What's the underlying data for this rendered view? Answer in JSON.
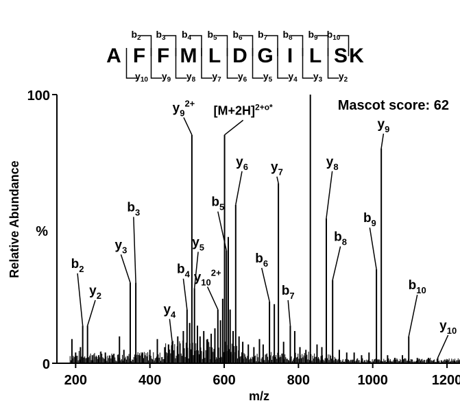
{
  "chart_data": {
    "type": "spectrum",
    "title": "",
    "xlabel": "m/z",
    "ylabel": "Relative Abundance",
    "y_axis_marker": "%",
    "xlim": [
      160,
      1240
    ],
    "ylim": [
      0,
      100
    ],
    "x_ticks": [
      200,
      400,
      600,
      800,
      1000,
      1200
    ],
    "y_ticks": [
      {
        "value": 0,
        "label": "0"
      },
      {
        "value": 100,
        "label": "100"
      }
    ],
    "grid": false,
    "annotation": "Mascot score: 62",
    "sequence": [
      "A",
      "F",
      "F",
      "M",
      "L",
      "D",
      "G",
      "I",
      "L",
      "S",
      "K"
    ],
    "b_ion_labels": [
      "b2",
      "b3",
      "b4",
      "b5",
      "b6",
      "b7",
      "b8",
      "b9",
      "b10"
    ],
    "y_ion_labels": [
      "y10",
      "y9",
      "y8",
      "y7",
      "y6",
      "y5",
      "y4",
      "y3",
      "y2"
    ],
    "peaks": [
      {
        "x": 190,
        "y": 9
      },
      {
        "x": 200,
        "y": 4
      },
      {
        "x": 213,
        "y": 6
      },
      {
        "x": 219,
        "y": 14
      },
      {
        "x": 232,
        "y": 14
      },
      {
        "x": 245,
        "y": 3
      },
      {
        "x": 262,
        "y": 3
      },
      {
        "x": 280,
        "y": 4
      },
      {
        "x": 300,
        "y": 3
      },
      {
        "x": 318,
        "y": 10
      },
      {
        "x": 330,
        "y": 5
      },
      {
        "x": 347,
        "y": 30
      },
      {
        "x": 362,
        "y": 30
      },
      {
        "x": 380,
        "y": 4
      },
      {
        "x": 400,
        "y": 5
      },
      {
        "x": 420,
        "y": 9
      },
      {
        "x": 440,
        "y": 6
      },
      {
        "x": 450,
        "y": 7
      },
      {
        "x": 460,
        "y": 8
      },
      {
        "x": 475,
        "y": 10
      },
      {
        "x": 490,
        "y": 12
      },
      {
        "x": 500,
        "y": 20
      },
      {
        "x": 507,
        "y": 15
      },
      {
        "x": 513,
        "y": 85
      },
      {
        "x": 520,
        "y": 28
      },
      {
        "x": 528,
        "y": 14
      },
      {
        "x": 535,
        "y": 10
      },
      {
        "x": 545,
        "y": 12
      },
      {
        "x": 555,
        "y": 9
      },
      {
        "x": 565,
        "y": 11
      },
      {
        "x": 575,
        "y": 13
      },
      {
        "x": 583,
        "y": 20
      },
      {
        "x": 590,
        "y": 16
      },
      {
        "x": 596,
        "y": 24
      },
      {
        "x": 601,
        "y": 85
      },
      {
        "x": 606,
        "y": 42
      },
      {
        "x": 611,
        "y": 47
      },
      {
        "x": 616,
        "y": 20
      },
      {
        "x": 624,
        "y": 12
      },
      {
        "x": 631,
        "y": 59
      },
      {
        "x": 640,
        "y": 10
      },
      {
        "x": 650,
        "y": 8
      },
      {
        "x": 665,
        "y": 7
      },
      {
        "x": 680,
        "y": 6
      },
      {
        "x": 695,
        "y": 9
      },
      {
        "x": 705,
        "y": 7
      },
      {
        "x": 722,
        "y": 23
      },
      {
        "x": 735,
        "y": 22
      },
      {
        "x": 746,
        "y": 67
      },
      {
        "x": 760,
        "y": 8
      },
      {
        "x": 778,
        "y": 14
      },
      {
        "x": 790,
        "y": 12
      },
      {
        "x": 804,
        "y": 6
      },
      {
        "x": 820,
        "y": 5
      },
      {
        "x": 832,
        "y": 100
      },
      {
        "x": 850,
        "y": 7
      },
      {
        "x": 863,
        "y": 6
      },
      {
        "x": 875,
        "y": 54
      },
      {
        "x": 892,
        "y": 31
      },
      {
        "x": 910,
        "y": 5
      },
      {
        "x": 930,
        "y": 4
      },
      {
        "x": 950,
        "y": 4
      },
      {
        "x": 970,
        "y": 3
      },
      {
        "x": 990,
        "y": 4
      },
      {
        "x": 1010,
        "y": 35
      },
      {
        "x": 1023,
        "y": 80
      },
      {
        "x": 1040,
        "y": 3
      },
      {
        "x": 1060,
        "y": 2
      },
      {
        "x": 1080,
        "y": 3
      },
      {
        "x": 1097,
        "y": 10
      },
      {
        "x": 1120,
        "y": 2
      },
      {
        "x": 1150,
        "y": 2
      },
      {
        "x": 1175,
        "y": 2
      },
      {
        "x": 1200,
        "y": 1
      },
      {
        "x": 1220,
        "y": 1
      }
    ],
    "peak_labels": [
      {
        "ion": "b",
        "sub": "2",
        "sup": "",
        "peak_x": 219,
        "peak_y": 14,
        "label_x": 205,
        "label_y": 35
      },
      {
        "ion": "y",
        "sub": "2",
        "sup": "",
        "peak_x": 232,
        "peak_y": 14,
        "label_x": 253,
        "label_y": 25
      },
      {
        "ion": "y",
        "sub": "3",
        "sup": "",
        "peak_x": 347,
        "peak_y": 30,
        "label_x": 322,
        "label_y": 42
      },
      {
        "ion": "b",
        "sub": "3",
        "sup": "",
        "peak_x": 362,
        "peak_y": 30,
        "label_x": 356,
        "label_y": 56
      },
      {
        "ion": "y",
        "sub": "4",
        "sup": "",
        "peak_x": 460,
        "peak_y": 8,
        "label_x": 453,
        "label_y": 18
      },
      {
        "ion": "b",
        "sub": "4",
        "sup": "",
        "peak_x": 500,
        "peak_y": 20,
        "label_x": 490,
        "label_y": 33
      },
      {
        "ion": "y",
        "sub": "9",
        "sup": "2+",
        "peak_x": 513,
        "peak_y": 85,
        "label_x": 491,
        "label_y": 93
      },
      {
        "ion": "y",
        "sub": "5",
        "sup": "",
        "peak_x": 520,
        "peak_y": 28,
        "label_x": 530,
        "label_y": 43
      },
      {
        "ion": "y",
        "sub": "10",
        "sup": "2+",
        "peak_x": 583,
        "peak_y": 20,
        "label_x": 555,
        "label_y": 30
      },
      {
        "ion": "b",
        "sub": "5",
        "sup": "",
        "peak_x": 606,
        "peak_y": 42,
        "label_x": 583,
        "label_y": 58
      },
      {
        "ion": "M",
        "sub": "",
        "sup": "",
        "peak_x": 601,
        "peak_y": 85,
        "label_x": 651,
        "label_y": 92
      },
      {
        "ion": "y",
        "sub": "6",
        "sup": "",
        "peak_x": 631,
        "peak_y": 59,
        "label_x": 648,
        "label_y": 73
      },
      {
        "ion": "b",
        "sub": "6",
        "sup": "",
        "peak_x": 722,
        "peak_y": 23,
        "label_x": 701,
        "label_y": 37
      },
      {
        "ion": "y",
        "sub": "7",
        "sup": "",
        "peak_x": 746,
        "peak_y": 67,
        "label_x": 742,
        "label_y": 71
      },
      {
        "ion": "b",
        "sub": "7",
        "sup": "",
        "peak_x": 778,
        "peak_y": 14,
        "label_x": 772,
        "label_y": 25
      },
      {
        "ion": "y",
        "sub": "8",
        "sup": "",
        "peak_x": 875,
        "peak_y": 54,
        "label_x": 891,
        "label_y": 73
      },
      {
        "ion": "b",
        "sub": "8",
        "sup": "",
        "peak_x": 892,
        "peak_y": 31,
        "label_x": 913,
        "label_y": 45
      },
      {
        "ion": "y",
        "sub": "9",
        "sup": "",
        "peak_x": 1023,
        "peak_y": 80,
        "label_x": 1029,
        "label_y": 87
      },
      {
        "ion": "b",
        "sub": "9",
        "sup": "",
        "peak_x": 1010,
        "peak_y": 35,
        "label_x": 992,
        "label_y": 52
      },
      {
        "ion": "b",
        "sub": "10",
        "sup": "",
        "peak_x": 1097,
        "peak_y": 10,
        "label_x": 1120,
        "label_y": 27
      },
      {
        "ion": "y",
        "sub": "10",
        "sup": "",
        "peak_x": 1175,
        "peak_y": 2,
        "label_x": 1203,
        "label_y": 12
      }
    ],
    "precursor_label": {
      "base": "[M+2H]",
      "sup": "2+o*"
    }
  }
}
